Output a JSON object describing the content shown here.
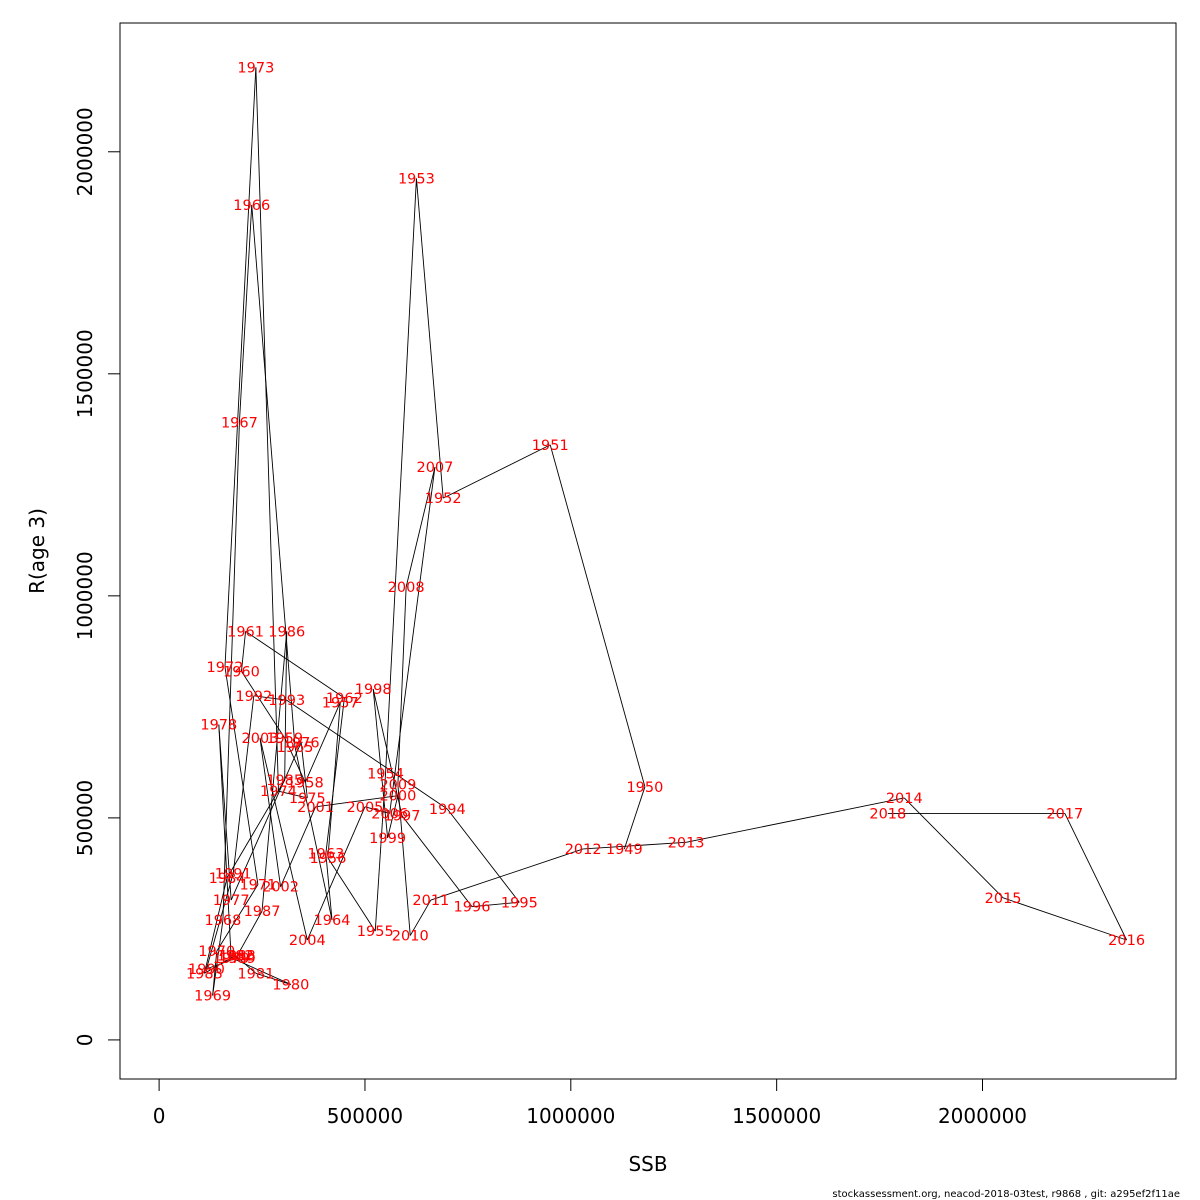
{
  "chart_data": {
    "type": "line",
    "title": "",
    "xlabel": "SSB",
    "ylabel": "R(age 3)",
    "xlim": [
      -95000,
      2470000
    ],
    "ylim": [
      -88000,
      2290000
    ],
    "x_ticks": [
      0,
      500000,
      1000000,
      1500000,
      2000000
    ],
    "x_tick_labels": [
      "0",
      "500000",
      "1000000",
      "1500000",
      "2000000"
    ],
    "y_ticks": [
      0,
      500000,
      1000000,
      1500000,
      2000000
    ],
    "y_tick_labels": [
      "0",
      "500000",
      "1000000",
      "1500000",
      "2000000"
    ],
    "grid": false,
    "line_color": "#000000",
    "label_color": "#ff0000",
    "footer": "stockassessment.org, neacod-2018-03test, r9868 , git: a295ef2f11ae",
    "points": [
      {
        "year": "1949",
        "ssb": 1130000,
        "r": 430000
      },
      {
        "year": "1950",
        "ssb": 1180000,
        "r": 570000
      },
      {
        "year": "1951",
        "ssb": 950000,
        "r": 1340000
      },
      {
        "year": "1952",
        "ssb": 690000,
        "r": 1220000
      },
      {
        "year": "1953",
        "ssb": 625000,
        "r": 1940000
      },
      {
        "year": "1954",
        "ssb": 550000,
        "r": 600000
      },
      {
        "year": "1955",
        "ssb": 525000,
        "r": 245000
      },
      {
        "year": "1956",
        "ssb": 410000,
        "r": 410000
      },
      {
        "year": "1957",
        "ssb": 440000,
        "r": 760000
      },
      {
        "year": "1958",
        "ssb": 355000,
        "r": 580000
      },
      {
        "year": "1959",
        "ssb": 305000,
        "r": 680000
      },
      {
        "year": "1960",
        "ssb": 200000,
        "r": 830000
      },
      {
        "year": "1961",
        "ssb": 210000,
        "r": 920000
      },
      {
        "year": "1962",
        "ssb": 450000,
        "r": 770000
      },
      {
        "year": "1963",
        "ssb": 405000,
        "r": 420000
      },
      {
        "year": "1964",
        "ssb": 420000,
        "r": 270000
      },
      {
        "year": "1965",
        "ssb": 330000,
        "r": 660000
      },
      {
        "year": "1966",
        "ssb": 225000,
        "r": 1880000
      },
      {
        "year": "1967",
        "ssb": 195000,
        "r": 1390000
      },
      {
        "year": "1968",
        "ssb": 155000,
        "r": 270000
      },
      {
        "year": "1969",
        "ssb": 130000,
        "r": 100000
      },
      {
        "year": "1970",
        "ssb": 140000,
        "r": 200000
      },
      {
        "year": "1971",
        "ssb": 240000,
        "r": 350000
      },
      {
        "year": "1972",
        "ssb": 160000,
        "r": 840000
      },
      {
        "year": "1973",
        "ssb": 235000,
        "r": 2190000
      },
      {
        "year": "1974",
        "ssb": 290000,
        "r": 560000
      },
      {
        "year": "1975",
        "ssb": 360000,
        "r": 545000
      },
      {
        "year": "1976",
        "ssb": 345000,
        "r": 670000
      },
      {
        "year": "1977",
        "ssb": 175000,
        "r": 315000
      },
      {
        "year": "1978",
        "ssb": 145000,
        "r": 710000
      },
      {
        "year": "1979",
        "ssb": 175000,
        "r": 185000
      },
      {
        "year": "1980",
        "ssb": 320000,
        "r": 125000
      },
      {
        "year": "1981",
        "ssb": 235000,
        "r": 150000
      },
      {
        "year": "1982",
        "ssb": 185000,
        "r": 190000
      },
      {
        "year": "1983",
        "ssb": 110000,
        "r": 150000
      },
      {
        "year": "1984",
        "ssb": 165000,
        "r": 365000
      },
      {
        "year": "1985",
        "ssb": 305000,
        "r": 585000
      },
      {
        "year": "1986",
        "ssb": 310000,
        "r": 920000
      },
      {
        "year": "1987",
        "ssb": 250000,
        "r": 290000
      },
      {
        "year": "1988",
        "ssb": 190000,
        "r": 190000
      },
      {
        "year": "1989",
        "ssb": 190000,
        "r": 185000
      },
      {
        "year": "1990",
        "ssb": 115000,
        "r": 160000
      },
      {
        "year": "1991",
        "ssb": 180000,
        "r": 375000
      },
      {
        "year": "1992",
        "ssb": 230000,
        "r": 775000
      },
      {
        "year": "1993",
        "ssb": 310000,
        "r": 765000
      },
      {
        "year": "1994",
        "ssb": 700000,
        "r": 520000
      },
      {
        "year": "1995",
        "ssb": 875000,
        "r": 310000
      },
      {
        "year": "1996",
        "ssb": 760000,
        "r": 300000
      },
      {
        "year": "1997",
        "ssb": 590000,
        "r": 505000
      },
      {
        "year": "1998",
        "ssb": 520000,
        "r": 790000
      },
      {
        "year": "1999",
        "ssb": 555000,
        "r": 455000
      },
      {
        "year": "2000",
        "ssb": 580000,
        "r": 550000
      },
      {
        "year": "2001",
        "ssb": 380000,
        "r": 525000
      },
      {
        "year": "2002",
        "ssb": 295000,
        "r": 345000
      },
      {
        "year": "2003",
        "ssb": 245000,
        "r": 680000
      },
      {
        "year": "2004",
        "ssb": 360000,
        "r": 225000
      },
      {
        "year": "2005",
        "ssb": 500000,
        "r": 525000
      },
      {
        "year": "2006",
        "ssb": 560000,
        "r": 510000
      },
      {
        "year": "2007",
        "ssb": 670000,
        "r": 1290000
      },
      {
        "year": "2008",
        "ssb": 600000,
        "r": 1020000
      },
      {
        "year": "2009",
        "ssb": 580000,
        "r": 575000
      },
      {
        "year": "2010",
        "ssb": 610000,
        "r": 235000
      },
      {
        "year": "2011",
        "ssb": 660000,
        "r": 315000
      },
      {
        "year": "2012",
        "ssb": 1030000,
        "r": 430000
      },
      {
        "year": "2013",
        "ssb": 1280000,
        "r": 445000
      },
      {
        "year": "2014",
        "ssb": 1810000,
        "r": 545000
      },
      {
        "year": "2015",
        "ssb": 2050000,
        "r": 320000
      },
      {
        "year": "2016",
        "ssb": 2350000,
        "r": 225000
      },
      {
        "year": "2017",
        "ssb": 2200000,
        "r": 510000
      },
      {
        "year": "2018",
        "ssb": 1770000,
        "r": 510000
      }
    ]
  }
}
